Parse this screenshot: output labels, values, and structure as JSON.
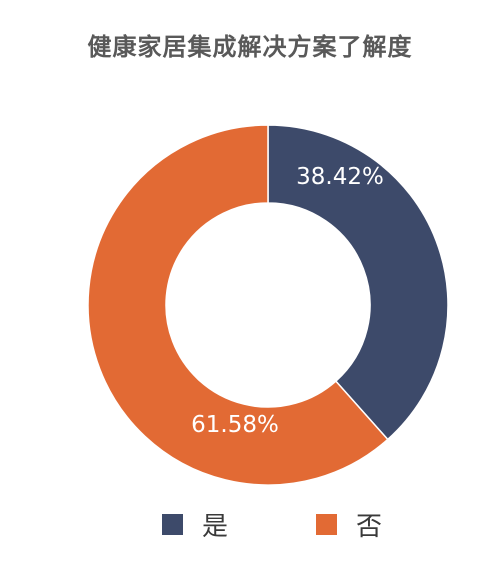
{
  "chart_data": {
    "type": "pie",
    "style": "donut",
    "title": "健康家居集成解决方案了解度",
    "categories": [
      "是",
      "否"
    ],
    "values": [
      38.42,
      61.58
    ],
    "value_labels": [
      "38.42%",
      "61.58%"
    ],
    "colors": [
      "#3d4a6a",
      "#e26a34"
    ],
    "legend_position": "bottom"
  }
}
